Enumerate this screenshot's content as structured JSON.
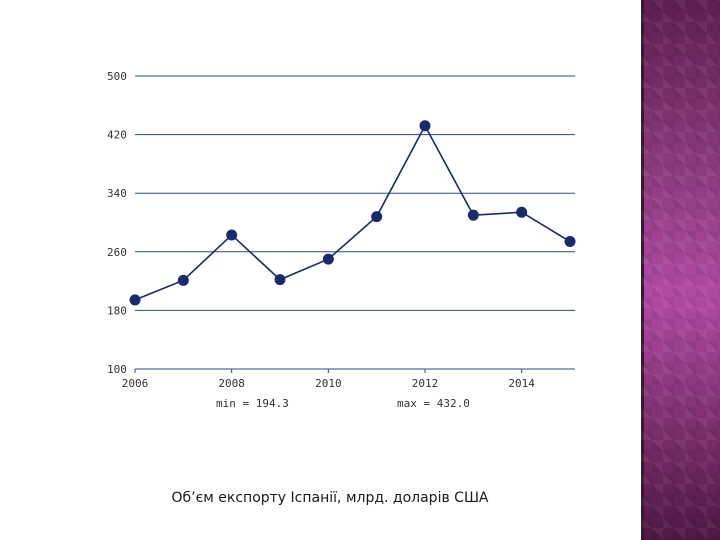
{
  "chart_data": {
    "type": "line",
    "title": "Об’єм експорту Іспанії, млрд. доларів США",
    "xlabel": "",
    "ylabel": "",
    "x": [
      2006,
      2007,
      2008,
      2009,
      2010,
      2011,
      2012,
      2013,
      2014,
      2015
    ],
    "values": [
      194.3,
      221,
      283,
      222,
      250,
      308,
      432.0,
      310,
      314,
      274
    ],
    "ylim": [
      100,
      500
    ],
    "xlim": [
      2006,
      2015
    ],
    "yticks": [
      "500",
      "420",
      "340",
      "260",
      "180",
      "100"
    ],
    "xticks": [
      "2006",
      "2008",
      "2010",
      "2012",
      "2014"
    ],
    "min_label": "min = 194.3",
    "max_label": "max = 432.0",
    "grid": true,
    "colors": {
      "line": "#1a2a6c",
      "grid": "#2a4a8c"
    }
  }
}
